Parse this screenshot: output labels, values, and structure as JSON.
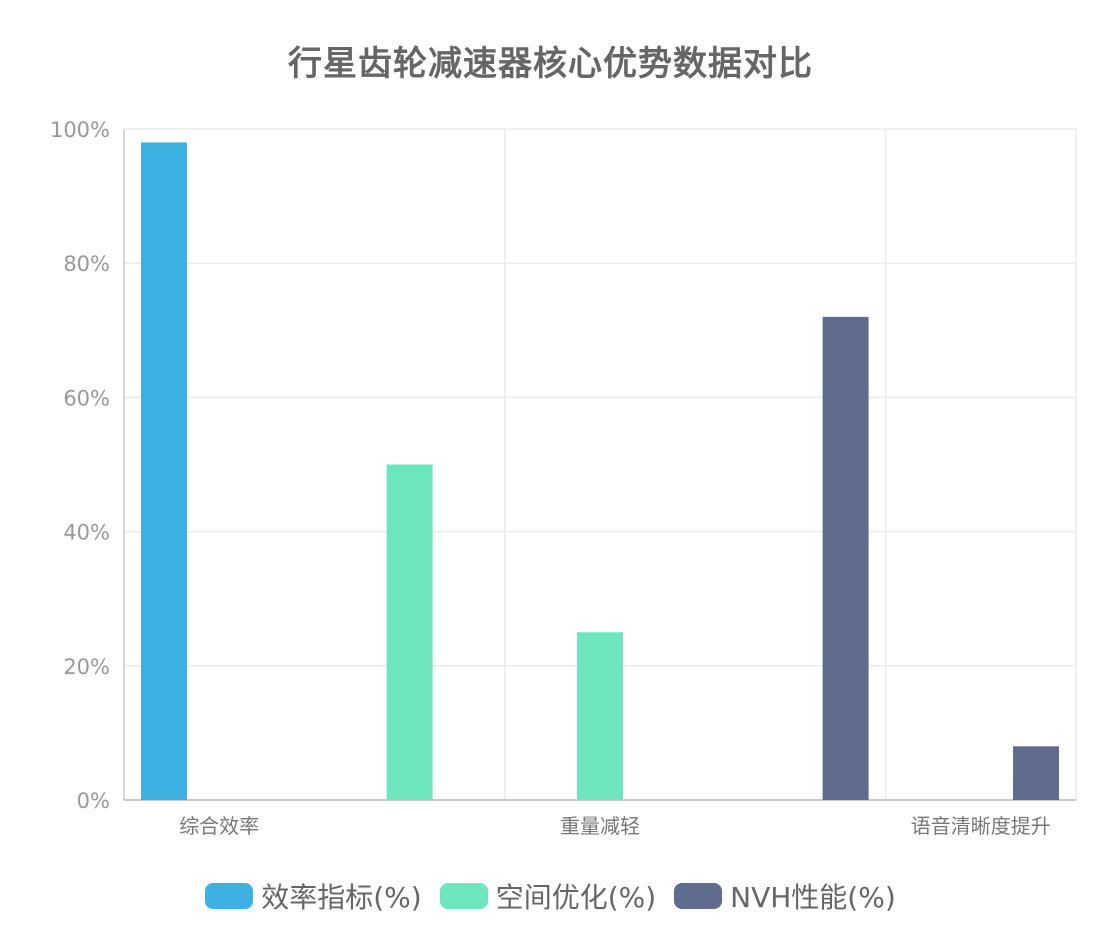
{
  "chart_data": {
    "type": "bar",
    "title": "行星齿轮减速器核心优势数据对比",
    "categories": [
      "综合效率",
      "",
      "重量减轻",
      "",
      "语音清晰度提升"
    ],
    "series": [
      {
        "name": "效率指标(%)",
        "color": "#3eb1e3",
        "values": [
          98,
          0,
          0,
          0,
          0
        ]
      },
      {
        "name": "空间优化(%)",
        "color": "#6de6c0",
        "values": [
          0,
          50,
          25,
          0,
          0
        ]
      },
      {
        "name": "NVH性能(%)",
        "color": "#606c8e",
        "values": [
          0,
          0,
          0,
          72,
          8
        ]
      }
    ],
    "ylim": [
      0,
      100
    ],
    "yticks": [
      "0%",
      "20%",
      "40%",
      "60%",
      "80%",
      "100%"
    ],
    "grid": true,
    "legend_position": "bottom"
  }
}
